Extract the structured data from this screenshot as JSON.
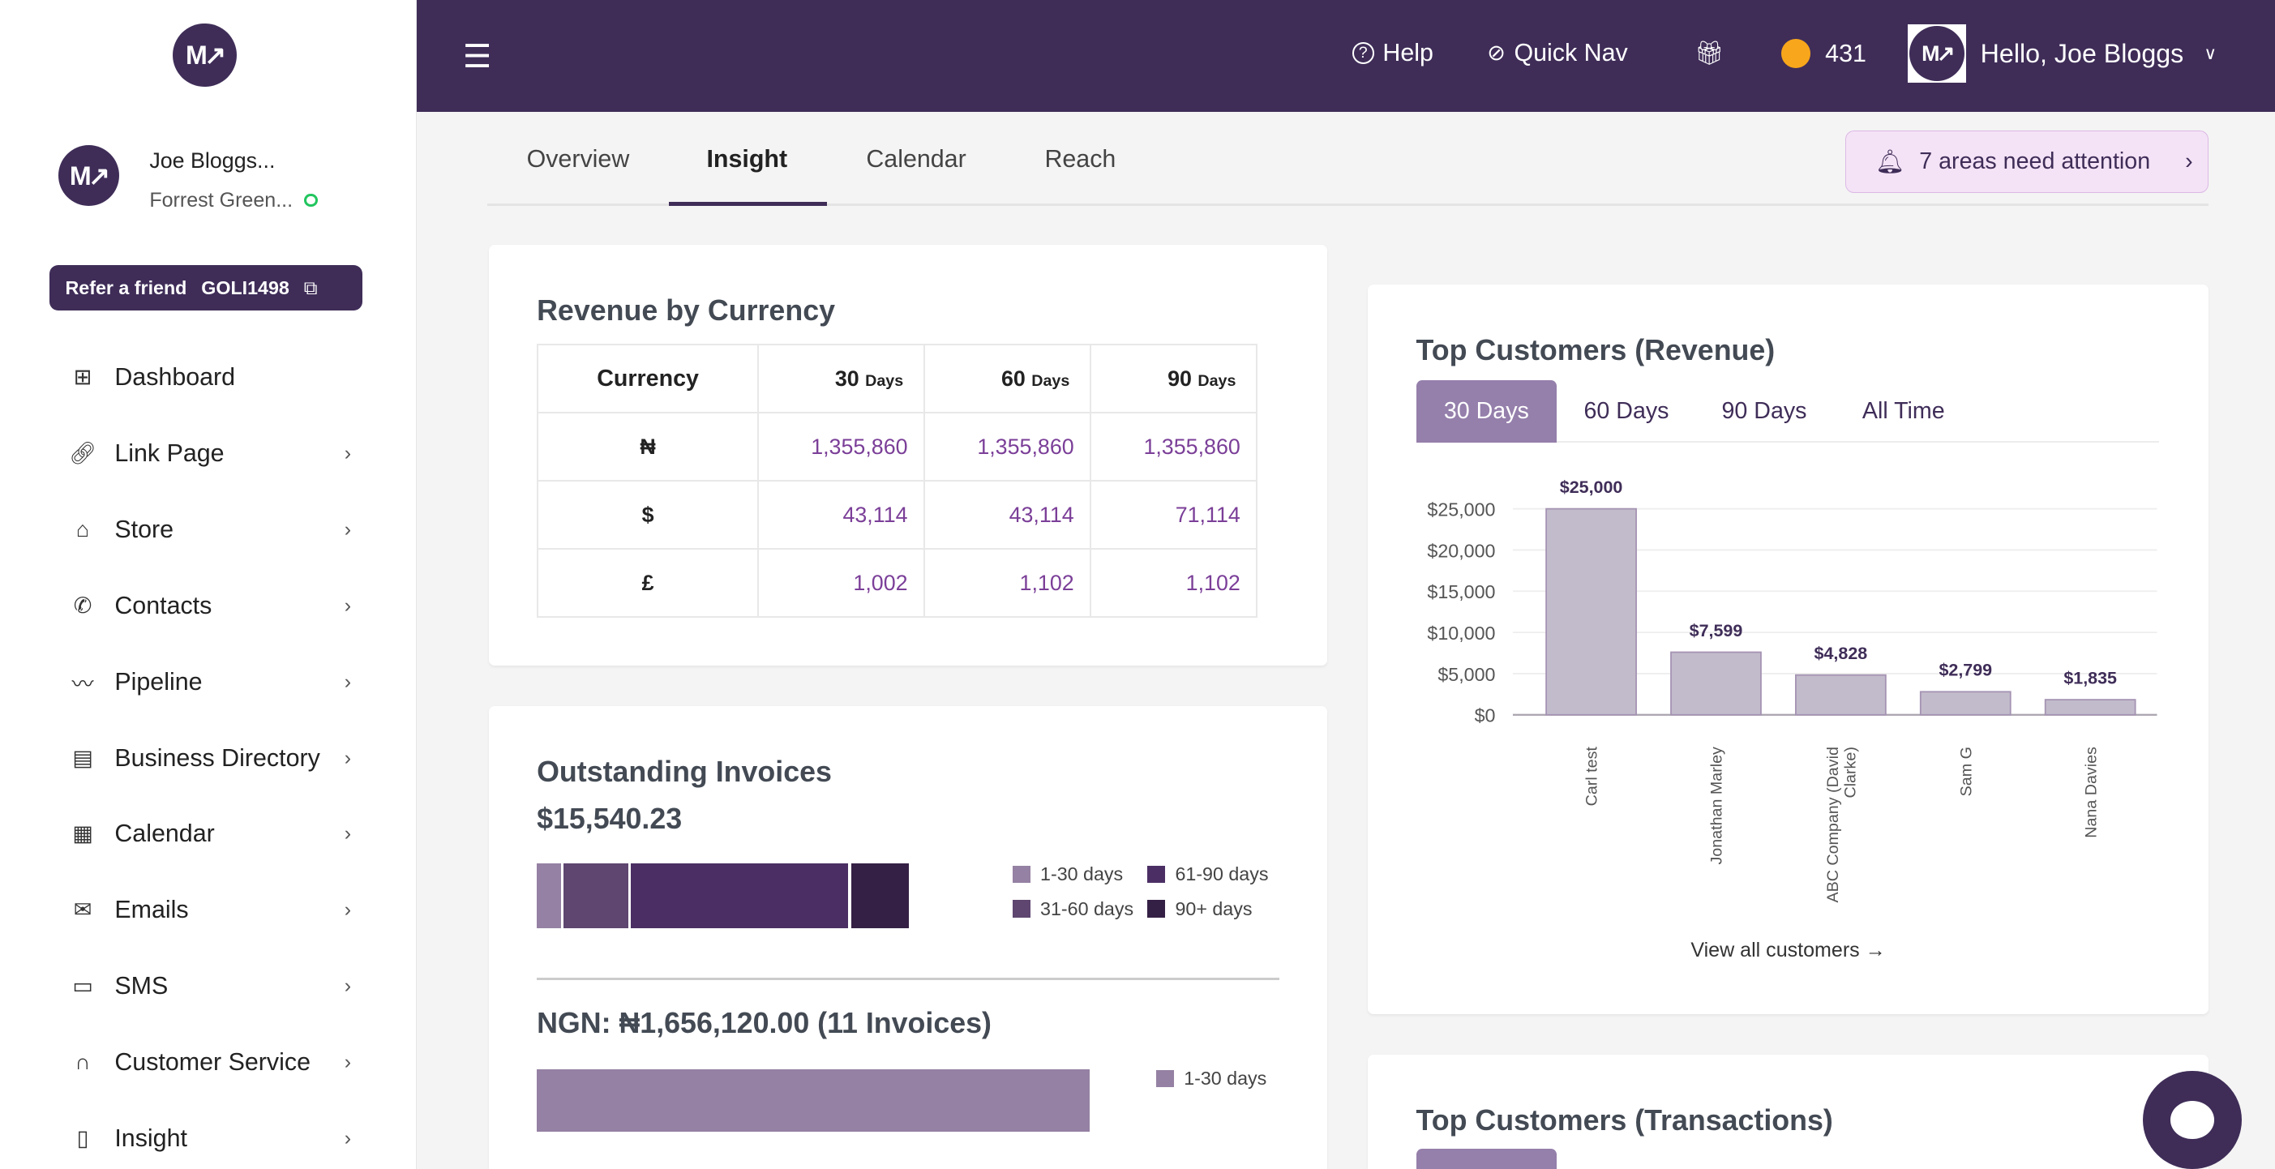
{
  "sidebar": {
    "profile": {
      "name": "Joe Bloggs...",
      "business": "Forrest Green..."
    },
    "refer": {
      "label": "Refer a friend",
      "code": "GOLI1498"
    },
    "items": [
      {
        "label": "Dashboard",
        "icon": "grid-icon"
      },
      {
        "label": "Link Page",
        "icon": "link-icon"
      },
      {
        "label": "Store",
        "icon": "store-icon"
      },
      {
        "label": "Contacts",
        "icon": "phone-icon"
      },
      {
        "label": "Pipeline",
        "icon": "pipeline-icon"
      },
      {
        "label": "Business Directory",
        "icon": "directory-icon"
      },
      {
        "label": "Calendar",
        "icon": "calendar-icon"
      },
      {
        "label": "Emails",
        "icon": "mail-icon"
      },
      {
        "label": "SMS",
        "icon": "sms-icon"
      },
      {
        "label": "Customer Service",
        "icon": "headset-icon"
      },
      {
        "label": "Insight",
        "icon": "book-icon"
      }
    ]
  },
  "topbar": {
    "help": "Help",
    "quick_nav": "Quick Nav",
    "coins": "431",
    "greeting": "Hello, Joe Bloggs"
  },
  "tabs": [
    {
      "label": "Overview"
    },
    {
      "label": "Insight",
      "active": true
    },
    {
      "label": "Calendar"
    },
    {
      "label": "Reach"
    }
  ],
  "attention": {
    "label": "7 areas need attention"
  },
  "revenue_by_currency": {
    "title": "Revenue by Currency",
    "headers": {
      "currency": "Currency",
      "d30": "30",
      "d60": "60",
      "d90": "90",
      "days": "Days"
    },
    "rows": [
      {
        "currency": "₦",
        "d30": "1,355,860",
        "d60": "1,355,860",
        "d90": "1,355,860"
      },
      {
        "currency": "$",
        "d30": "43,114",
        "d60": "43,114",
        "d90": "71,114"
      },
      {
        "currency": "£",
        "d30": "1,002",
        "d60": "1,102",
        "d90": "1,102"
      }
    ]
  },
  "outstanding": {
    "title": "Outstanding Invoices",
    "total": "$15,540.23",
    "legend": [
      "1-30 days",
      "31-60 days",
      "61-90 days",
      "90+ days"
    ],
    "colors": [
      "#9581a3",
      "#5e4670",
      "#4b2f64",
      "#352045"
    ],
    "usd_shares": [
      6.5,
      17.5,
      58.5,
      15.5
    ],
    "ngn": {
      "title": "NGN: ₦1,656,120.00 (11 Invoices)",
      "legend": "1-30 days",
      "share": 100
    }
  },
  "top_customers_revenue": {
    "title": "Top Customers (Revenue)",
    "tabs": [
      "30 Days",
      "60 Days",
      "90 Days",
      "All Time"
    ],
    "active_tab": "30 Days",
    "link": "View all customers →"
  },
  "chart_data": {
    "type": "bar",
    "categories": [
      "Carl test",
      "Jonathan Marley",
      "ABC Company (David Clarke)",
      "Sam G",
      "Nana Davies"
    ],
    "values": [
      25000,
      7599,
      4828,
      2799,
      1835
    ],
    "data_labels": [
      "$25,000",
      "$7,599",
      "$4,828",
      "$2,799",
      "$1,835"
    ],
    "yticks": [
      "$0",
      "$5,000",
      "$10,000",
      "$15,000",
      "$20,000",
      "$25,000"
    ],
    "ylim": [
      0,
      25000
    ],
    "grid": true,
    "bar_color": "#c2bbcb"
  },
  "top_customers_transactions": {
    "title": "Top Customers (Transactions)"
  },
  "colors": {
    "brand": "#3f2d58",
    "accent": "#957fab",
    "value": "#7b3f98",
    "online": "#22c55e"
  }
}
